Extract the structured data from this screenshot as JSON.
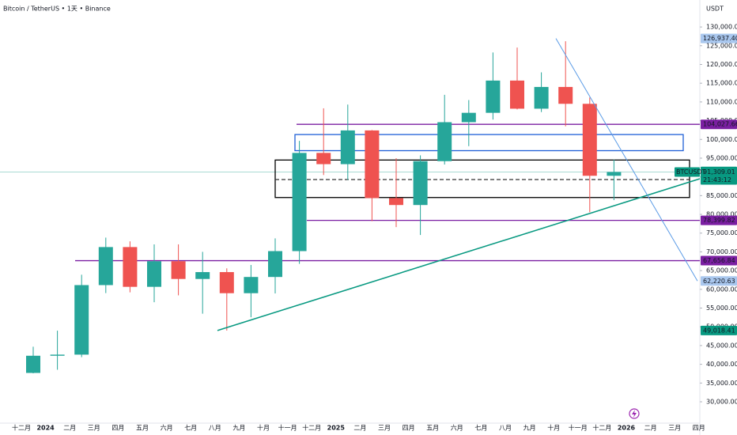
{
  "chart_data": {
    "type": "candlestick",
    "title": "Bitcoin / TetherUS • 1天 • Binance",
    "y_axis_label": "USDT",
    "categories": [
      "十二月",
      "2024",
      "二月",
      "三月",
      "四月",
      "五月",
      "六月",
      "七月",
      "八月",
      "九月",
      "十月",
      "十一月",
      "十二月",
      "2025",
      "二月",
      "三月",
      "四月",
      "五月",
      "六月",
      "七月",
      "八月",
      "九月",
      "十月",
      "十一月",
      "十二月",
      "2026",
      "二月",
      "三月",
      "四月"
    ],
    "open": [
      37700,
      42280,
      42580,
      61130,
      71280,
      60670,
      67500,
      62770,
      64600,
      58970,
      63300,
      70200,
      96400,
      93400,
      102400,
      84350,
      82500,
      94200,
      104600,
      107100,
      115700,
      108200,
      114000,
      109500,
      90300,
      null,
      null,
      null,
      null
    ],
    "high": [
      44700,
      48970,
      63900,
      73800,
      72800,
      71980,
      72000,
      70000,
      65600,
      66500,
      73600,
      99600,
      108300,
      109300,
      102500,
      95000,
      95750,
      111900,
      110500,
      123200,
      124500,
      117900,
      126200,
      111200,
      94600,
      null,
      null,
      null,
      null
    ],
    "low": [
      37600,
      38550,
      41900,
      59000,
      59200,
      56550,
      58400,
      53500,
      49000,
      52550,
      58900,
      66800,
      90500,
      89200,
      78200,
      76600,
      74500,
      93300,
      98200,
      105300,
      108000,
      107300,
      103500,
      80600,
      83800,
      null,
      null,
      null,
      null
    ],
    "close": [
      42280,
      42580,
      61130,
      71280,
      60670,
      67500,
      62770,
      64600,
      58970,
      63300,
      70200,
      96400,
      93400,
      102400,
      84350,
      82500,
      94200,
      104600,
      107100,
      115700,
      108200,
      114000,
      109500,
      90300,
      91300,
      null,
      null,
      null,
      null
    ],
    "up_color": "#26a69a",
    "down_color": "#ef5350",
    "ylim": [
      24300,
      137200
    ],
    "yticks": [
      {
        "value": 30000,
        "label": "30,000.00"
      },
      {
        "value": 35000,
        "label": "35,000.00"
      },
      {
        "value": 40000,
        "label": "40,000.00"
      },
      {
        "value": 45000,
        "label": "45,000.00"
      },
      {
        "value": 50000,
        "label": "50,000.00"
      },
      {
        "value": 55000,
        "label": "55,000.00"
      },
      {
        "value": 60000,
        "label": "60,000.00"
      },
      {
        "value": 65000,
        "label": "65,000.00"
      },
      {
        "value": 70000,
        "label": "70,000.00"
      },
      {
        "value": 75000,
        "label": "75,000.00"
      },
      {
        "value": 80000,
        "label": "80,000.00"
      },
      {
        "value": 85000,
        "label": "85,000.00"
      },
      {
        "value": 90000,
        "label": "90,000.00"
      },
      {
        "value": 95000,
        "label": "95,000.00"
      },
      {
        "value": 100000,
        "label": "100,000.00"
      },
      {
        "value": 105000,
        "label": "105,000.00"
      },
      {
        "value": 110000,
        "label": "110,000.00"
      },
      {
        "value": 115000,
        "label": "115,000.00"
      },
      {
        "value": 120000,
        "label": "120,000.00"
      },
      {
        "value": 125000,
        "label": "125,000.00"
      },
      {
        "value": 130000,
        "label": "130,000.00"
      }
    ],
    "levels": [
      {
        "value": 104027.66,
        "label": "104,027.66",
        "color": "#7b1fa2"
      },
      {
        "value": 78399.82,
        "label": "78,399.82",
        "color": "#7b1fa2"
      },
      {
        "value": 67656.84,
        "label": "67,656.84",
        "color": "#7b1fa2"
      }
    ],
    "zones": [
      {
        "from": 97000,
        "to": 101300,
        "color": "#1e5fd6"
      },
      {
        "from": 84500,
        "to": 94500,
        "color": "#000000"
      }
    ],
    "dashed_level": 89300,
    "trendlines": [
      {
        "from": 49018.41,
        "to": 89500,
        "color": "#089981"
      },
      {
        "from": 126937.4,
        "to": 62220.63,
        "color": "#5b9be6"
      }
    ],
    "badges": [
      {
        "value": 126937.4,
        "label": "126,937.40",
        "color": "#a9c7ee"
      },
      {
        "value": 62220.63,
        "label": "62,220.63",
        "color": "#a9c7ee"
      },
      {
        "value": 49018.41,
        "label": "49,018.41",
        "color": "#089981"
      },
      {
        "value": 91472.61,
        "label": "91,472.61",
        "color": "#089981"
      }
    ],
    "last_price": {
      "value": 91309.01,
      "label": "91,309.01",
      "symbol": "BTCUSDT",
      "countdown": "21:43:12",
      "color": "#089981"
    }
  }
}
